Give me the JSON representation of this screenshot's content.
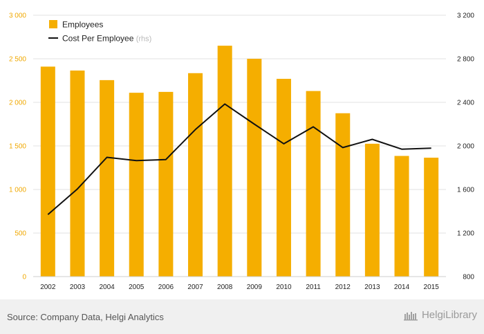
{
  "chart_data": {
    "type": "bar+line",
    "categories": [
      "2002",
      "2003",
      "2004",
      "2005",
      "2006",
      "2007",
      "2008",
      "2009",
      "2010",
      "2011",
      "2012",
      "2013",
      "2014",
      "2015"
    ],
    "series": [
      {
        "name": "Employees",
        "type": "bar",
        "axis": "left",
        "color": "#f5ae00",
        "values": [
          2410,
          2365,
          2255,
          2110,
          2120,
          2335,
          2650,
          2500,
          2270,
          2130,
          1875,
          1525,
          1385,
          1365
        ]
      },
      {
        "name": "Cost Per Employee",
        "suffix": "(rhs)",
        "type": "line",
        "axis": "right",
        "color": "#111111",
        "values": [
          1370,
          1605,
          1895,
          1865,
          1875,
          2150,
          2385,
          2200,
          2020,
          2175,
          1985,
          2060,
          1970,
          1980
        ]
      }
    ],
    "y_left": {
      "ticks": [
        0,
        500,
        1000,
        1500,
        2000,
        2500,
        3000
      ],
      "tick_labels": [
        "0",
        "500",
        "1 000",
        "1 500",
        "2 000",
        "2 500",
        "3 000"
      ],
      "ylim": [
        0,
        3000
      ]
    },
    "y_right": {
      "ticks": [
        800,
        1200,
        1600,
        2000,
        2400,
        2800,
        3200
      ],
      "tick_labels": [
        "800",
        "1 200",
        "1 600",
        "2 000",
        "2 400",
        "2 800",
        "3 200"
      ],
      "ylim": [
        800,
        3200
      ]
    },
    "grid": true,
    "legend": "top-left"
  },
  "footer": {
    "source": "Source: Company Data, Helgi Analytics",
    "brand": "HelgiLibrary"
  }
}
